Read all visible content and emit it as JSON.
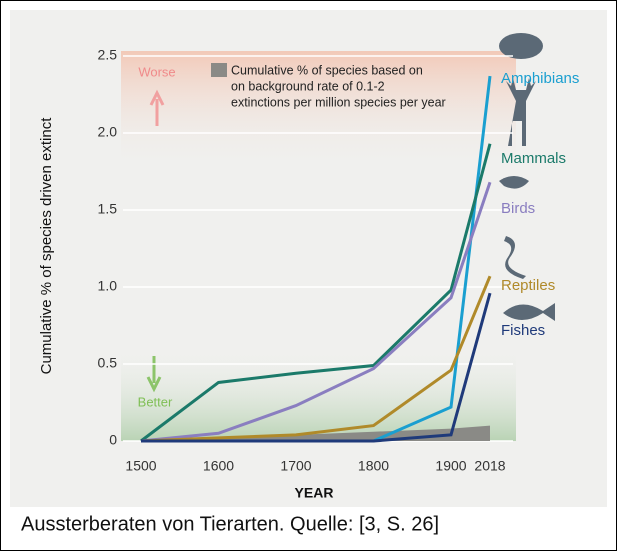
{
  "chart_data": {
    "type": "line",
    "y_label": "Cumulative % of species driven extinct",
    "x_label": "YEAR",
    "categories": [
      "1500",
      "1600",
      "1700",
      "1800",
      "1900",
      "2018"
    ],
    "series": [
      {
        "name": "Amphibians",
        "color": "#1a9fd0",
        "values": [
          0,
          0,
          0,
          0,
          0.22,
          2.37
        ]
      },
      {
        "name": "Mammals",
        "color": "#1b7a6a",
        "values": [
          0,
          0.38,
          0.44,
          0.49,
          0.98,
          1.93
        ]
      },
      {
        "name": "Birds",
        "color": "#8a7ec0",
        "values": [
          0,
          0.05,
          0.23,
          0.47,
          0.93,
          1.68
        ]
      },
      {
        "name": "Reptiles",
        "color": "#b08a2a",
        "values": [
          0,
          0.02,
          0.04,
          0.1,
          0.46,
          1.07
        ]
      },
      {
        "name": "Fishes",
        "color": "#1f3a7a",
        "values": [
          0,
          0,
          0,
          0,
          0.04,
          0.96
        ]
      }
    ],
    "background": {
      "label_lines": [
        "Cumulative % of species based on",
        "on background rate of 0.1-2",
        "extinctions per million species per year"
      ],
      "color": "#8a8a86",
      "values": [
        0,
        0.02,
        0.04,
        0.06,
        0.08,
        0.1
      ]
    },
    "annotations": {
      "worse": "Worse",
      "better": "Better"
    },
    "ylim": [
      0,
      2.5
    ],
    "yticks": [
      0,
      {
        "value": 0.5,
        "label": "0.5"
      },
      {
        "value": 1,
        "label": "1.0"
      },
      {
        "value": 1.5,
        "label": "1.5"
      },
      {
        "value": 2,
        "label": "2.0"
      },
      {
        "value": 2.5,
        "label": "2.5"
      }
    ],
    "grid": true
  },
  "caption": "Aussterberaten von Tierarten. Quelle: [3, S. 26]"
}
